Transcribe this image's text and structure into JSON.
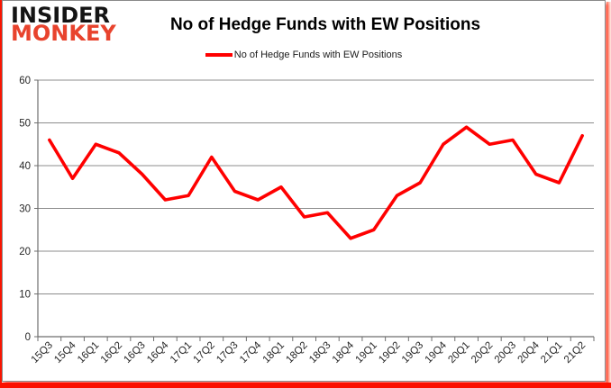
{
  "logo": {
    "line1": "INSIDER",
    "line2": "MONKEY"
  },
  "header": {
    "title": "No of Hedge Funds with EW Positions"
  },
  "legend": {
    "label": "No of Hedge Funds with EW Positions",
    "marker_color": "#FF0000"
  },
  "chart_data": {
    "type": "line",
    "title": "No of Hedge Funds with EW Positions",
    "categories": [
      "15Q3",
      "15Q4",
      "16Q1",
      "16Q2",
      "16Q3",
      "16Q4",
      "17Q1",
      "17Q2",
      "17Q3",
      "17Q4",
      "18Q1",
      "18Q2",
      "18Q3",
      "18Q4",
      "19Q1",
      "19Q2",
      "19Q3",
      "19Q4",
      "20Q1",
      "20Q2",
      "20Q3",
      "20Q4",
      "21Q1",
      "21Q2"
    ],
    "series": [
      {
        "name": "No of Hedge Funds with EW Positions",
        "color": "#FF0000",
        "values": [
          46,
          37,
          45,
          43,
          38,
          32,
          33,
          42,
          34,
          32,
          35,
          28,
          29,
          23,
          25,
          33,
          36,
          45,
          49,
          45,
          46,
          38,
          36,
          47
        ]
      }
    ],
    "xlabel": "",
    "ylabel": "",
    "ylim": [
      0,
      60
    ],
    "yticks": [
      0,
      10,
      20,
      30,
      40,
      50,
      60
    ],
    "grid": true,
    "legend_position": "top",
    "colors": {
      "gridline": "#8c8c8c",
      "axis": "#6e6e6e",
      "tick_label": "#262626",
      "line_width": 3.6
    }
  }
}
